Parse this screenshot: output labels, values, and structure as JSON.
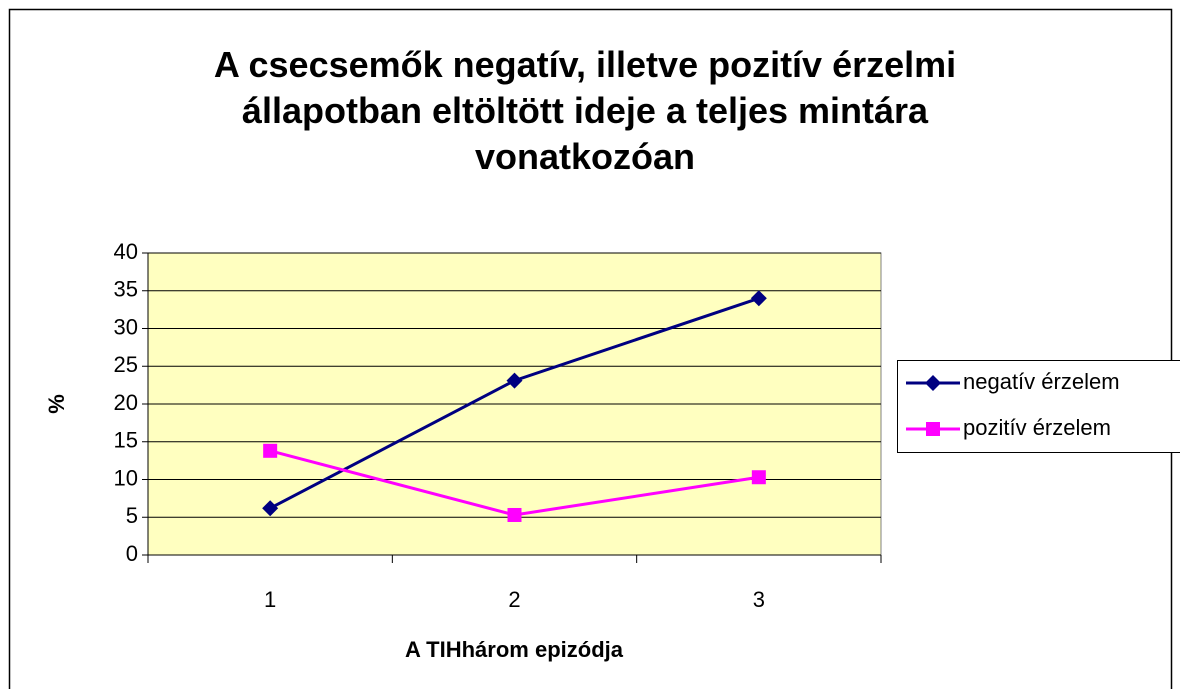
{
  "chart_data": {
    "type": "line",
    "title": "A csecsemők negatív, illetve pozitív érzelmi állapotban eltöltött ideje a teljes mintára vonatkozóan",
    "x_label": "A TIHhárom epizódja",
    "y_label": "%",
    "categories": [
      "1",
      "2",
      "3"
    ],
    "series": [
      {
        "name": "negatív érzelem",
        "color": "#000080",
        "marker": "diamond",
        "values": [
          6.2,
          23.1,
          34
        ]
      },
      {
        "name": "pozitív érzelem",
        "color": "#ff00ff",
        "marker": "square",
        "values": [
          13.8,
          5.3,
          10.3
        ]
      }
    ],
    "ylim": [
      0,
      40
    ],
    "yticks": [
      0,
      5,
      10,
      15,
      20,
      25,
      30,
      35,
      40
    ],
    "grid": true,
    "legend": "right",
    "plot_background": "#ffffc0"
  }
}
